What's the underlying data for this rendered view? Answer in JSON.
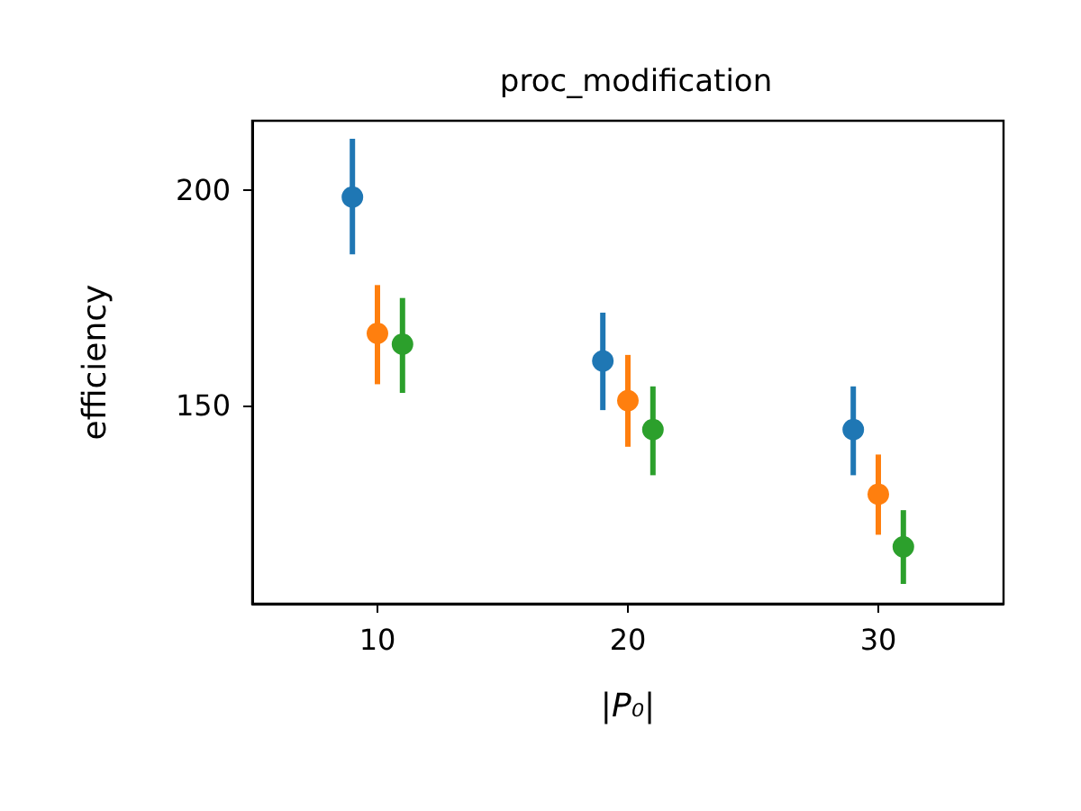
{
  "chart_data": {
    "type": "scatter",
    "title": "proc_modification",
    "xlabel": "|P₀|",
    "ylabel": "efficiency",
    "xlim": [
      5,
      35
    ],
    "ylim": [
      104,
      216
    ],
    "xticks": [
      10,
      20,
      30
    ],
    "yticks": [
      150,
      200
    ],
    "grid": false,
    "marker": "circle",
    "series": [
      {
        "color": "#1f77b4",
        "x": [
          9,
          19,
          29
        ],
        "values": [
          198.3,
          160.3,
          144.4
        ],
        "errors": [
          [
            185,
            211.8
          ],
          [
            148.9,
            171.5
          ],
          [
            133.8,
            154.4
          ]
        ]
      },
      {
        "color": "#ff7f0e",
        "x": [
          10,
          20,
          30
        ],
        "values": [
          166.7,
          151.1,
          129.4
        ],
        "errors": [
          [
            154.9,
            177.9
          ],
          [
            140.4,
            161.7
          ],
          [
            120,
            138.6
          ]
        ]
      },
      {
        "color": "#2ca02c",
        "x": [
          11,
          21,
          31
        ],
        "values": [
          164.2,
          144.4,
          117.2
        ],
        "errors": [
          [
            152.9,
            174.9
          ],
          [
            133.8,
            154.4
          ],
          [
            108.6,
            125.7
          ]
        ]
      }
    ]
  }
}
